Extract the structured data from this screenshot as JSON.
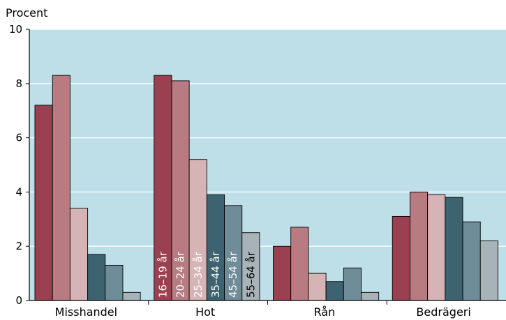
{
  "chart_data": {
    "type": "bar",
    "ylabel": "Procent",
    "ylim": [
      0,
      10
    ],
    "yticks": [
      0,
      2,
      4,
      6,
      8,
      10
    ],
    "grid": true,
    "categories": [
      "Misshandel",
      "Hot",
      "Rån",
      "Bedrägeri"
    ],
    "series": [
      {
        "name": "16–19 år",
        "color": "#9b4051",
        "values": [
          7.2,
          8.3,
          2.0,
          3.1
        ]
      },
      {
        "name": "20–24 år",
        "color": "#b77b81",
        "values": [
          8.3,
          8.1,
          2.7,
          4.0
        ]
      },
      {
        "name": "25–34 år",
        "color": "#d6b3b5",
        "values": [
          3.4,
          5.2,
          1.0,
          3.9
        ]
      },
      {
        "name": "35–44 år",
        "color": "#3d6370",
        "values": [
          1.7,
          3.9,
          0.7,
          3.8
        ]
      },
      {
        "name": "45–54 år",
        "color": "#6f8d98",
        "values": [
          1.3,
          3.5,
          1.2,
          2.9
        ]
      },
      {
        "name": "55–64 år",
        "color": "#a7b3b8",
        "values": [
          0.3,
          2.5,
          0.3,
          2.2
        ]
      }
    ],
    "legend_placement": "inside bars of Hot group",
    "colors": {
      "plot_background": "#bedfe8",
      "gridline": "#ffffff"
    }
  }
}
